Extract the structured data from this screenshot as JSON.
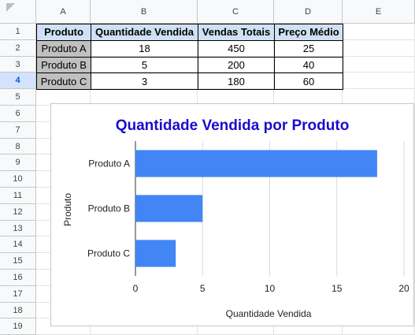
{
  "columns": [
    "A",
    "B",
    "C",
    "D",
    "E"
  ],
  "rows": [
    "1",
    "2",
    "3",
    "4",
    "5",
    "6",
    "7",
    "8",
    "9",
    "10",
    "11",
    "12",
    "13",
    "14",
    "15",
    "16",
    "17",
    "18",
    "19"
  ],
  "table": {
    "headers": [
      "Produto",
      "Quantidade Vendida",
      "Vendas Totais",
      "Preço Médio"
    ],
    "data": [
      [
        "Produto A",
        "18",
        "450",
        "25"
      ],
      [
        "Produto B",
        "5",
        "200",
        "40"
      ],
      [
        "Produto C",
        "3",
        "180",
        "60"
      ]
    ]
  },
  "colors": {
    "bar": "#4285f4",
    "title": "#1a0dcd",
    "selected_row": "#d3e3fd"
  },
  "chart_data": {
    "type": "bar",
    "orientation": "horizontal",
    "title": "Quantidade Vendida por Produto",
    "xlabel": "Quantidade Vendida",
    "ylabel": "Produto",
    "categories": [
      "Produto A",
      "Produto B",
      "Produto C"
    ],
    "values": [
      18,
      5,
      3
    ],
    "xlim": [
      0,
      20
    ],
    "xticks": [
      "0",
      "5",
      "10",
      "15",
      "20"
    ],
    "grid": true
  }
}
